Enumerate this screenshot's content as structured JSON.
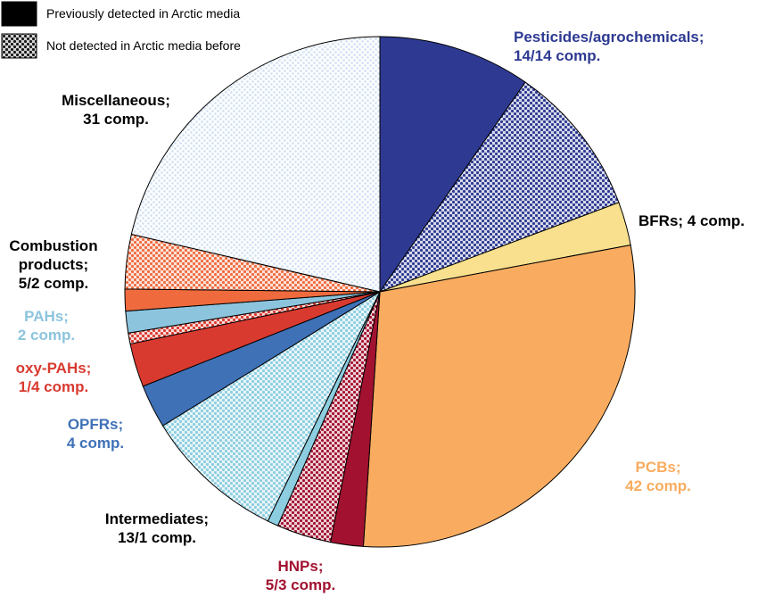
{
  "chart_data": {
    "type": "pie",
    "title": "",
    "legend": {
      "placement": "top-left",
      "entries": [
        {
          "key": "previous",
          "label": "Previously detected in Arctic media"
        },
        {
          "key": "new",
          "label": "Not detected in Arctic media before"
        }
      ]
    },
    "categories": [
      {
        "key": "pesticides",
        "label_lines": [
          "Pesticides/agrochemicals;",
          "14/14 comp."
        ],
        "color": "#2E3A92",
        "label_color": "#2E3A92",
        "previous": 14,
        "new": 14
      },
      {
        "key": "bfrs",
        "label_lines": [
          "BFRs; 4 comp."
        ],
        "color": "#F8E08E",
        "label_color": "#000000",
        "previous": 4,
        "new": 0
      },
      {
        "key": "pcbs",
        "label_lines": [
          "PCBs;",
          "42 comp."
        ],
        "color": "#F9AC60",
        "label_color": "#F9AC60",
        "previous": 42,
        "new": 0
      },
      {
        "key": "hnps",
        "label_lines": [
          "HNPs;",
          "5/3 comp."
        ],
        "color": "#A21230",
        "label_color": "#A21230",
        "previous": 3,
        "new": 5
      },
      {
        "key": "intermediates",
        "label_lines": [
          "Intermediates;",
          "13/1 comp."
        ],
        "color": "#8CCDE0",
        "label_color": "#000000",
        "previous": 1,
        "new": 13
      },
      {
        "key": "opfrs",
        "label_lines": [
          "OPFRs;",
          "4 comp."
        ],
        "color": "#3F71B7",
        "label_color": "#3F71B7",
        "previous": 4,
        "new": 0
      },
      {
        "key": "oxypahs",
        "label_lines": [
          "oxy-PAHs;",
          "1/4 comp."
        ],
        "color": "#D93A30",
        "label_color": "#D93A30",
        "previous": 4,
        "new": 1
      },
      {
        "key": "pahs",
        "label_lines": [
          "PAHs;",
          "2 comp."
        ],
        "color": "#8CC4DD",
        "label_color": "#8CC4DD",
        "previous": 2,
        "new": 0
      },
      {
        "key": "combustion",
        "label_lines": [
          "Combustion",
          "products;",
          "5/2 comp."
        ],
        "color": "#EF6B3E",
        "label_color": "#000000",
        "previous": 2,
        "new": 5
      },
      {
        "key": "misc",
        "label_lines": [
          "Miscellaneous;",
          "31 comp."
        ],
        "color": "#D2E2F4",
        "label_color": "#000000",
        "previous": 0,
        "new": 31
      }
    ]
  }
}
